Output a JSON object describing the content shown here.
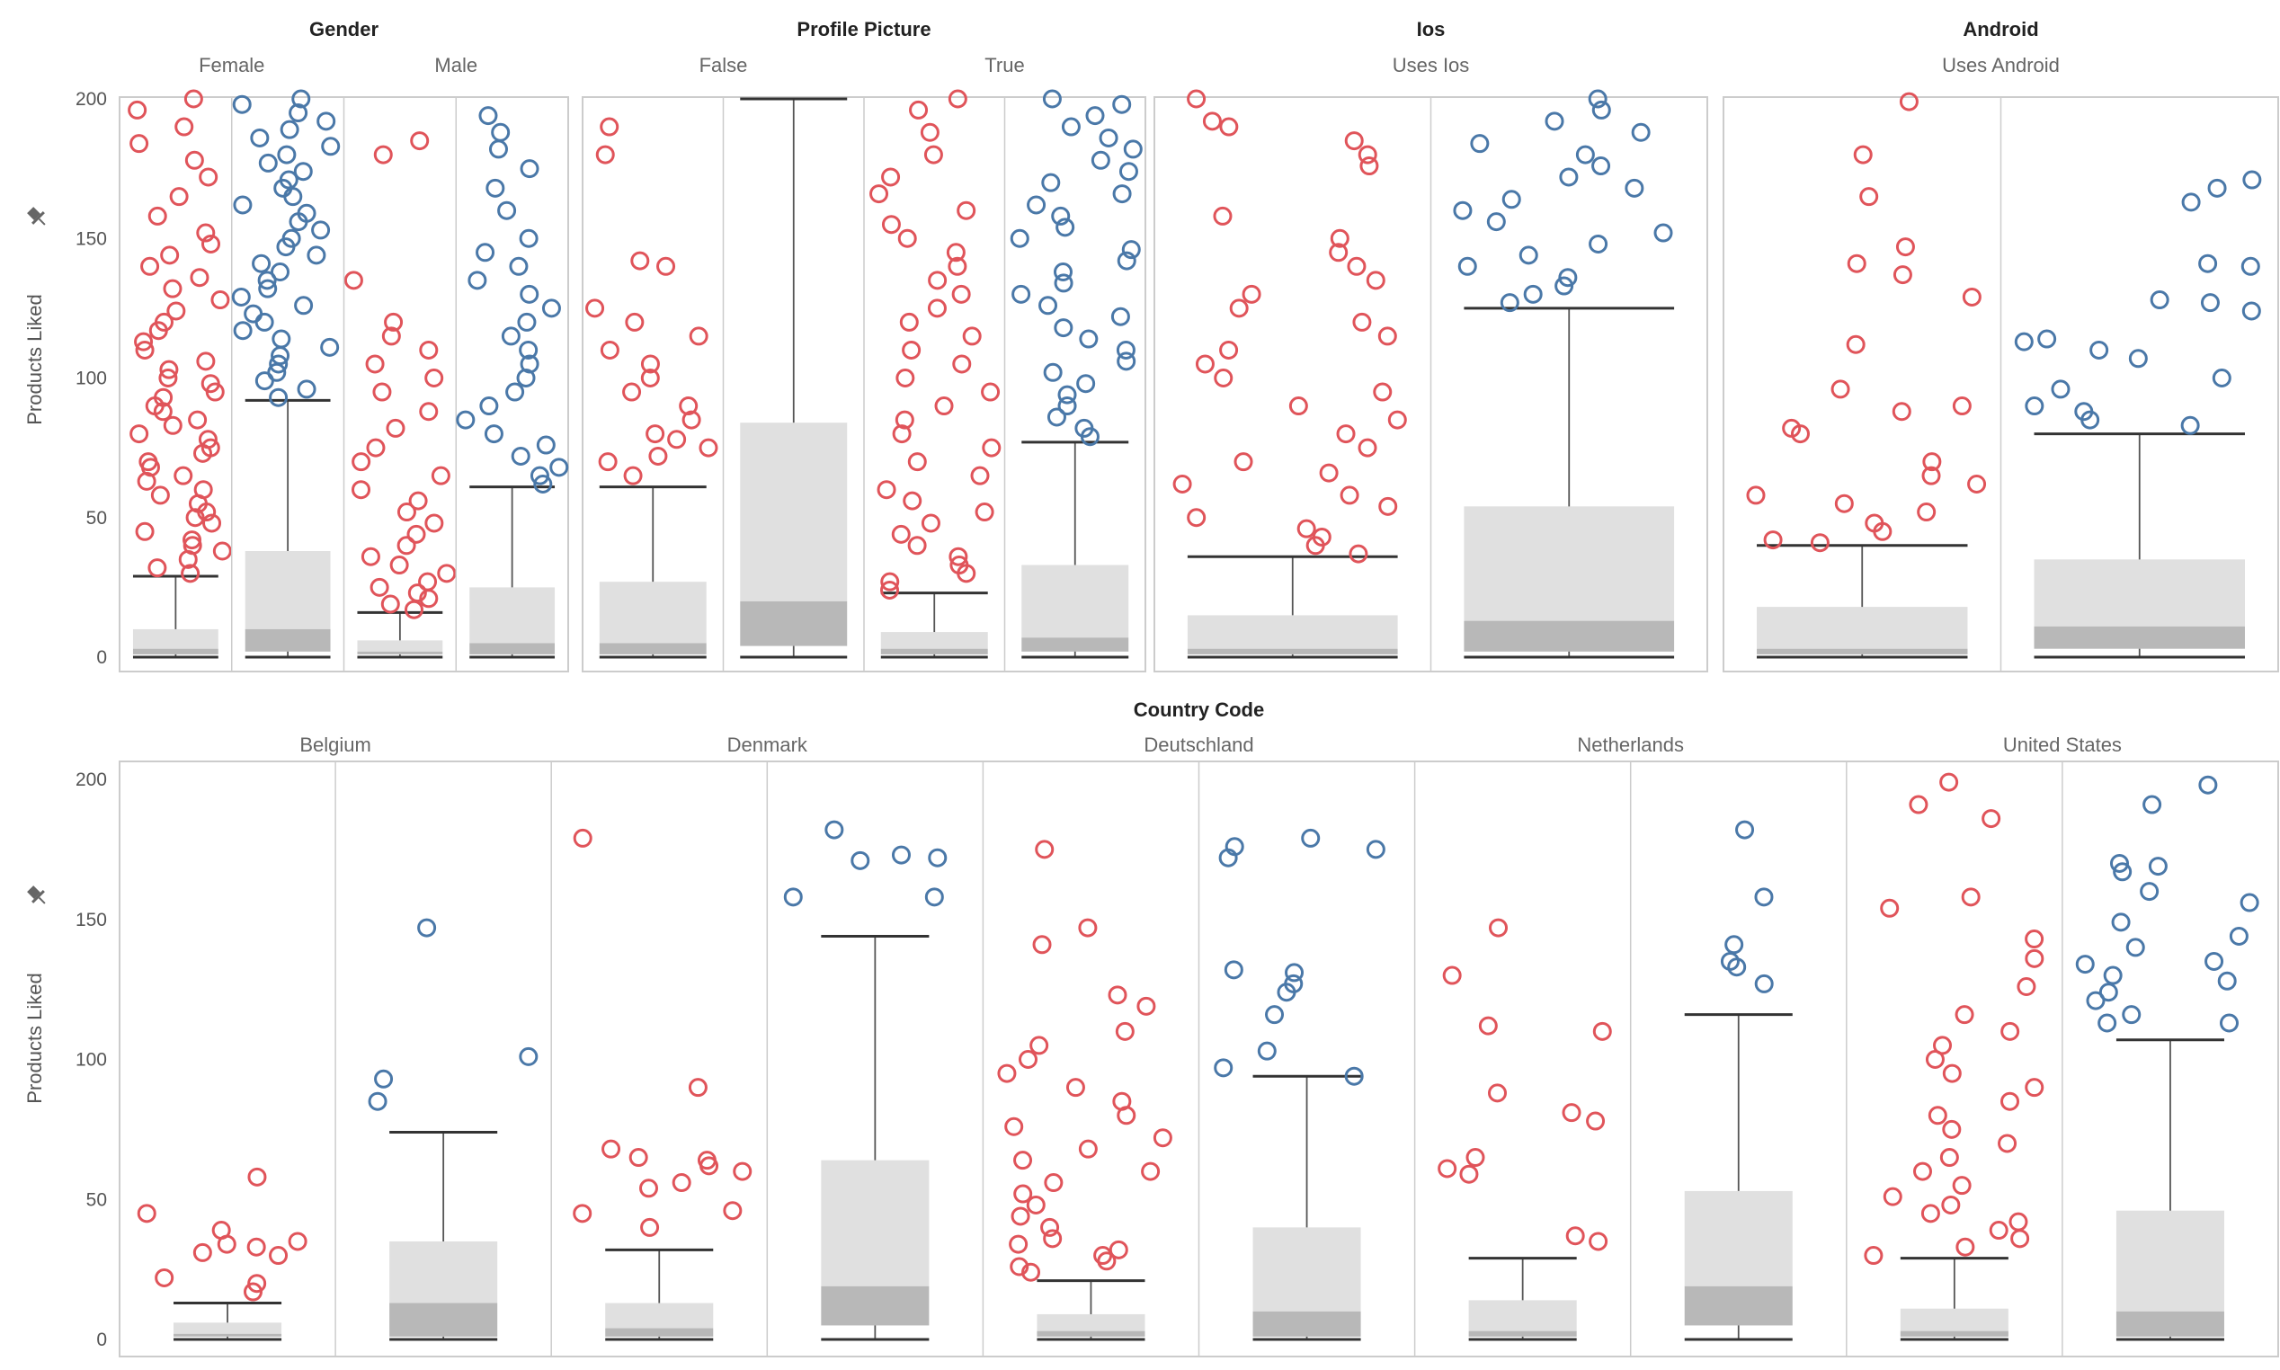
{
  "colors": {
    "group_a": "#e0545a",
    "group_b": "#4a78a8",
    "box_light": "#e0e0e0",
    "box_dark": "#b8b8b8",
    "whisker": "#333333",
    "divider": "#cccccc"
  },
  "top_row": {
    "y_axis_label": "Products Liked",
    "y_ticks": [
      "0",
      "50",
      "100",
      "150",
      "200"
    ],
    "groups": [
      {
        "title": "Gender",
        "subs": [
          "Female",
          "Male"
        ]
      },
      {
        "title": "Profile Picture",
        "subs": [
          "False",
          "True"
        ]
      },
      {
        "title": "Ios",
        "subs": [
          "Uses Ios"
        ]
      },
      {
        "title": "Android",
        "subs": [
          "Uses Android"
        ]
      }
    ]
  },
  "bottom_row": {
    "title": "Country Code",
    "y_axis_label": "Products Liked",
    "y_ticks": [
      "0",
      "50",
      "100",
      "150",
      "200"
    ],
    "subs": [
      "Belgium",
      "Denmark",
      "Deutschland",
      "Netherlands",
      "United States"
    ]
  },
  "chart_data": [
    {
      "type": "box-and-scatter",
      "ylabel": "Products Liked",
      "ylim": [
        0,
        200
      ],
      "facets": [
        {
          "group": "Gender",
          "category": "Female",
          "boxes": [
            {
              "series": "red",
              "min": 0,
              "q1": 1,
              "median": 3,
              "q3": 10,
              "max": 29,
              "outliers": [
                30,
                32,
                35,
                38,
                40,
                42,
                45,
                48,
                50,
                52,
                55,
                58,
                60,
                63,
                65,
                68,
                70,
                73,
                75,
                78,
                80,
                83,
                85,
                88,
                90,
                93,
                95,
                98,
                100,
                103,
                106,
                110,
                113,
                117,
                120,
                124,
                128,
                132,
                136,
                140,
                144,
                148,
                152,
                158,
                165,
                172,
                178,
                184,
                190,
                196,
                200
              ]
            },
            {
              "series": "blue",
              "min": 0,
              "q1": 2,
              "median": 10,
              "q3": 38,
              "max": 92,
              "outliers": [
                93,
                96,
                99,
                102,
                105,
                108,
                111,
                114,
                117,
                120,
                123,
                126,
                129,
                132,
                135,
                138,
                141,
                144,
                147,
                150,
                153,
                156,
                159,
                162,
                165,
                168,
                171,
                174,
                177,
                180,
                183,
                186,
                189,
                192,
                195,
                198,
                200
              ]
            }
          ]
        },
        {
          "group": "Gender",
          "category": "Male",
          "boxes": [
            {
              "series": "red",
              "min": 0,
              "q1": 1,
              "median": 2,
              "q3": 6,
              "max": 16,
              "outliers": [
                17,
                19,
                21,
                23,
                25,
                27,
                30,
                33,
                36,
                40,
                44,
                48,
                52,
                56,
                60,
                65,
                70,
                75,
                82,
                88,
                95,
                100,
                105,
                110,
                115,
                120,
                135,
                180,
                185
              ]
            },
            {
              "series": "blue",
              "min": 0,
              "q1": 1,
              "median": 5,
              "q3": 25,
              "max": 61,
              "outliers": [
                62,
                65,
                68,
                72,
                76,
                80,
                85,
                90,
                95,
                100,
                105,
                110,
                115,
                120,
                125,
                130,
                135,
                140,
                145,
                150,
                160,
                168,
                175,
                182,
                188,
                194
              ]
            }
          ]
        },
        {
          "group": "Profile Picture",
          "category": "False",
          "boxes": [
            {
              "series": "red",
              "min": 0,
              "q1": 1,
              "median": 5,
              "q3": 27,
              "max": 61,
              "outliers": [
                65,
                70,
                72,
                75,
                78,
                80,
                85,
                90,
                95,
                100,
                105,
                110,
                115,
                120,
                125,
                140,
                142,
                180,
                190
              ]
            },
            {
              "series": "blue",
              "min": 0,
              "q1": 4,
              "median": 20,
              "q3": 84,
              "max": 200,
              "outliers": []
            }
          ]
        },
        {
          "group": "Profile Picture",
          "category": "True",
          "boxes": [
            {
              "series": "red",
              "min": 0,
              "q1": 1,
              "median": 3,
              "q3": 9,
              "max": 23,
              "outliers": [
                24,
                27,
                30,
                33,
                36,
                40,
                44,
                48,
                52,
                56,
                60,
                65,
                70,
                75,
                80,
                85,
                90,
                95,
                100,
                105,
                110,
                115,
                120,
                125,
                130,
                135,
                140,
                145,
                150,
                155,
                160,
                166,
                172,
                180,
                188,
                196,
                200
              ]
            },
            {
              "series": "blue",
              "min": 0,
              "q1": 2,
              "median": 7,
              "q3": 33,
              "max": 77,
              "outliers": [
                79,
                82,
                86,
                90,
                94,
                98,
                102,
                106,
                110,
                114,
                118,
                122,
                126,
                130,
                134,
                138,
                142,
                146,
                150,
                154,
                158,
                162,
                166,
                170,
                174,
                178,
                182,
                186,
                190,
                194,
                198,
                200
              ]
            }
          ]
        },
        {
          "group": "Ios",
          "category": "Uses Ios",
          "boxes": [
            {
              "series": "red",
              "min": 0,
              "q1": 1,
              "median": 3,
              "q3": 15,
              "max": 36,
              "outliers": [
                37,
                40,
                43,
                46,
                50,
                54,
                58,
                62,
                66,
                70,
                75,
                80,
                85,
                90,
                95,
                100,
                105,
                110,
                115,
                120,
                125,
                130,
                135,
                140,
                145,
                150,
                158,
                176,
                180,
                185,
                190,
                192,
                200
              ]
            },
            {
              "series": "blue",
              "min": 0,
              "q1": 2,
              "median": 13,
              "q3": 54,
              "max": 125,
              "outliers": [
                127,
                130,
                133,
                136,
                140,
                144,
                148,
                152,
                156,
                160,
                164,
                168,
                172,
                176,
                180,
                184,
                188,
                192,
                196,
                200
              ]
            }
          ]
        },
        {
          "group": "Android",
          "category": "Uses Android",
          "boxes": [
            {
              "series": "red",
              "min": 0,
              "q1": 1,
              "median": 3,
              "q3": 18,
              "max": 40,
              "outliers": [
                41,
                42,
                45,
                48,
                52,
                55,
                58,
                62,
                65,
                70,
                80,
                82,
                88,
                90,
                96,
                112,
                129,
                137,
                141,
                147,
                165,
                180,
                199
              ]
            },
            {
              "series": "blue",
              "min": 0,
              "q1": 3,
              "median": 11,
              "q3": 35,
              "max": 80,
              "outliers": [
                83,
                85,
                88,
                90,
                96,
                100,
                107,
                110,
                113,
                114,
                124,
                127,
                128,
                140,
                141,
                163,
                168,
                171
              ]
            }
          ]
        }
      ]
    },
    {
      "type": "box-and-scatter",
      "title": "Country Code",
      "ylabel": "Products Liked",
      "ylim": [
        0,
        200
      ],
      "facets": [
        {
          "category": "Belgium",
          "boxes": [
            {
              "series": "red",
              "min": 0,
              "q1": 1,
              "median": 2,
              "q3": 6,
              "max": 13,
              "outliers": [
                17,
                20,
                22,
                30,
                31,
                33,
                34,
                35,
                39,
                45,
                58
              ]
            },
            {
              "series": "blue",
              "min": 0,
              "q1": 1,
              "median": 13,
              "q3": 35,
              "max": 74,
              "outliers": [
                85,
                93,
                101,
                147
              ]
            }
          ]
        },
        {
          "category": "Denmark",
          "boxes": [
            {
              "series": "red",
              "min": 0,
              "q1": 1,
              "median": 4,
              "q3": 13,
              "max": 32,
              "outliers": [
                40,
                45,
                46,
                54,
                56,
                60,
                62,
                64,
                65,
                68,
                90,
                179
              ]
            },
            {
              "series": "blue",
              "min": 0,
              "q1": 5,
              "median": 19,
              "q3": 64,
              "max": 144,
              "outliers": [
                158,
                158,
                171,
                172,
                173,
                182
              ]
            }
          ]
        },
        {
          "category": "Deutschland",
          "boxes": [
            {
              "series": "red",
              "min": 0,
              "q1": 1,
              "median": 3,
              "q3": 9,
              "max": 21,
              "outliers": [
                24,
                26,
                28,
                30,
                32,
                34,
                36,
                40,
                44,
                48,
                52,
                56,
                60,
                64,
                68,
                72,
                76,
                80,
                85,
                90,
                95,
                100,
                105,
                110,
                119,
                123,
                141,
                147,
                175
              ]
            },
            {
              "series": "blue",
              "min": 0,
              "q1": 1,
              "median": 10,
              "q3": 40,
              "max": 94,
              "outliers": [
                94,
                97,
                103,
                116,
                124,
                127,
                131,
                132,
                172,
                175,
                176,
                179
              ]
            }
          ]
        },
        {
          "category": "Netherlands",
          "boxes": [
            {
              "series": "red",
              "min": 0,
              "q1": 1,
              "median": 3,
              "q3": 14,
              "max": 29,
              "outliers": [
                35,
                37,
                59,
                61,
                65,
                78,
                81,
                88,
                110,
                112,
                130,
                147
              ]
            },
            {
              "series": "blue",
              "min": 0,
              "q1": 5,
              "median": 19,
              "q3": 53,
              "max": 116,
              "outliers": [
                127,
                133,
                135,
                141,
                158,
                182
              ]
            }
          ]
        },
        {
          "category": "United States",
          "boxes": [
            {
              "series": "red",
              "min": 0,
              "q1": 1,
              "median": 3,
              "q3": 11,
              "max": 29,
              "outliers": [
                30,
                33,
                36,
                39,
                42,
                45,
                48,
                51,
                55,
                60,
                65,
                70,
                75,
                80,
                85,
                90,
                95,
                100,
                105,
                110,
                116,
                126,
                136,
                143,
                154,
                158,
                186,
                191,
                199
              ]
            },
            {
              "series": "blue",
              "min": 0,
              "q1": 1,
              "median": 10,
              "q3": 46,
              "max": 107,
              "outliers": [
                113,
                113,
                116,
                121,
                124,
                128,
                130,
                134,
                135,
                140,
                144,
                149,
                156,
                160,
                167,
                169,
                170,
                191,
                198
              ]
            }
          ]
        }
      ]
    }
  ]
}
